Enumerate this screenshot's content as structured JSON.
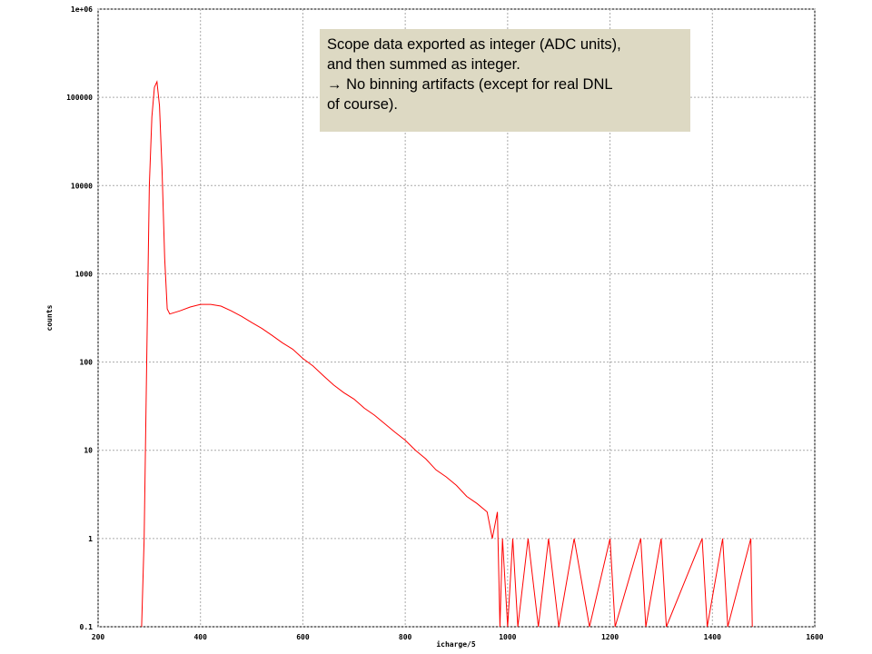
{
  "chart_data": {
    "type": "line",
    "xlabel": "icharge/5",
    "ylabel": "counts",
    "xlim": [
      200,
      1600
    ],
    "xticks": [
      200,
      400,
      600,
      800,
      1000,
      1200,
      1400,
      1600
    ],
    "ylim": [
      0.1,
      1000000
    ],
    "log_y": true,
    "grid": true,
    "yticks": [
      0.1,
      1,
      10,
      100,
      1000,
      10000,
      100000,
      {
        "value": 1000000,
        "label": "1e+06"
      }
    ],
    "annotation": [
      "Scope data exported as integer (ADC units),",
      "and then summed as integer.",
      "→ No binning artifacts (except for real DNL",
      "of course)."
    ],
    "series": [
      {
        "color": "#ff0000",
        "x": [
          285,
          290,
          295,
          300,
          305,
          310,
          315,
          320,
          325,
          330,
          335,
          340,
          360,
          380,
          400,
          420,
          440,
          460,
          480,
          500,
          520,
          540,
          560,
          580,
          600,
          620,
          640,
          660,
          680,
          700,
          720,
          740,
          760,
          780,
          800,
          820,
          840,
          860,
          880,
          900,
          920,
          940,
          960,
          970,
          980,
          985,
          990,
          1000,
          1010,
          1020,
          1040,
          1060,
          1080,
          1100,
          1130,
          1160,
          1200,
          1210,
          1260,
          1270,
          1300,
          1310,
          1380,
          1390,
          1420,
          1430,
          1475,
          1478
        ],
        "values": [
          0.1,
          1,
          100,
          10000,
          60000,
          130000,
          150000,
          80000,
          15000,
          1500,
          400,
          350,
          380,
          420,
          450,
          450,
          430,
          380,
          330,
          280,
          240,
          200,
          165,
          140,
          110,
          90,
          70,
          55,
          45,
          38,
          30,
          25,
          20,
          16,
          13,
          10,
          8,
          6,
          5,
          4,
          3,
          2.5,
          2,
          1,
          2,
          0.1,
          1,
          0.1,
          1,
          0.1,
          1,
          0.1,
          1,
          0.1,
          1,
          0.1,
          1,
          0.1,
          1,
          0.1,
          1,
          0.1,
          1,
          0.1,
          1,
          0.1,
          1,
          0.1
        ]
      }
    ]
  }
}
